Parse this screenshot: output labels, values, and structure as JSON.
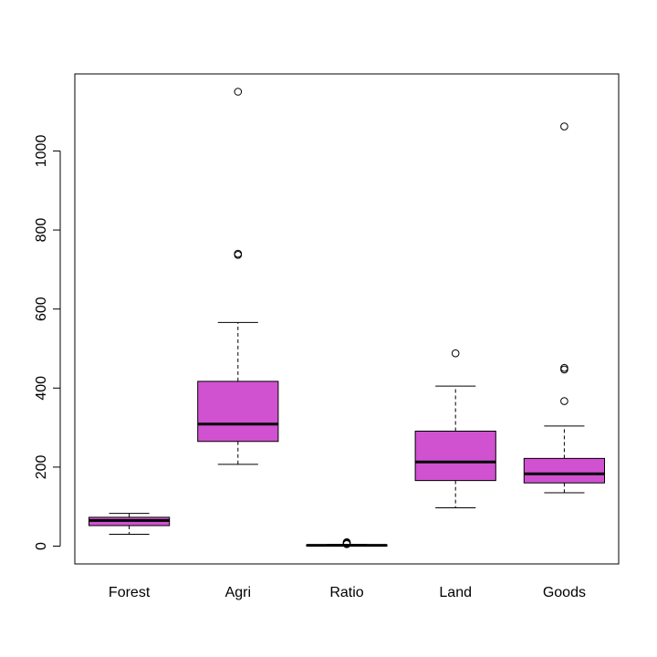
{
  "chart_data": {
    "type": "boxplot",
    "title": "",
    "xlabel": "",
    "ylabel": "",
    "ylim": [
      -45,
      1195
    ],
    "yticks": [
      0,
      200,
      400,
      600,
      800,
      1000
    ],
    "categories": [
      "Forest",
      "Agri",
      "Ratio",
      "Land",
      "Goods"
    ],
    "box_color": "#D052D0",
    "boxes": [
      {
        "name": "Forest",
        "whisker_low": 30,
        "q1": 52,
        "median": 65,
        "q3": 73,
        "whisker_high": 83,
        "outliers": []
      },
      {
        "name": "Agri",
        "whisker_low": 207,
        "q1": 265,
        "median": 309,
        "q3": 417,
        "whisker_high": 566,
        "outliers": [
          737,
          740,
          1150
        ]
      },
      {
        "name": "Ratio",
        "whisker_low": 0.5,
        "q1": 1.2,
        "median": 2,
        "q3": 3,
        "whisker_high": 4.5,
        "outliers": [
          5,
          7,
          9,
          10
        ]
      },
      {
        "name": "Land",
        "whisker_low": 97,
        "q1": 166,
        "median": 213,
        "q3": 291,
        "whisker_high": 405,
        "outliers": [
          488
        ]
      },
      {
        "name": "Goods",
        "whisker_low": 135,
        "q1": 160,
        "median": 183,
        "q3": 222,
        "whisker_high": 304,
        "outliers": [
          367,
          447,
          451,
          1062
        ]
      }
    ],
    "grid": false,
    "legend": "none"
  }
}
